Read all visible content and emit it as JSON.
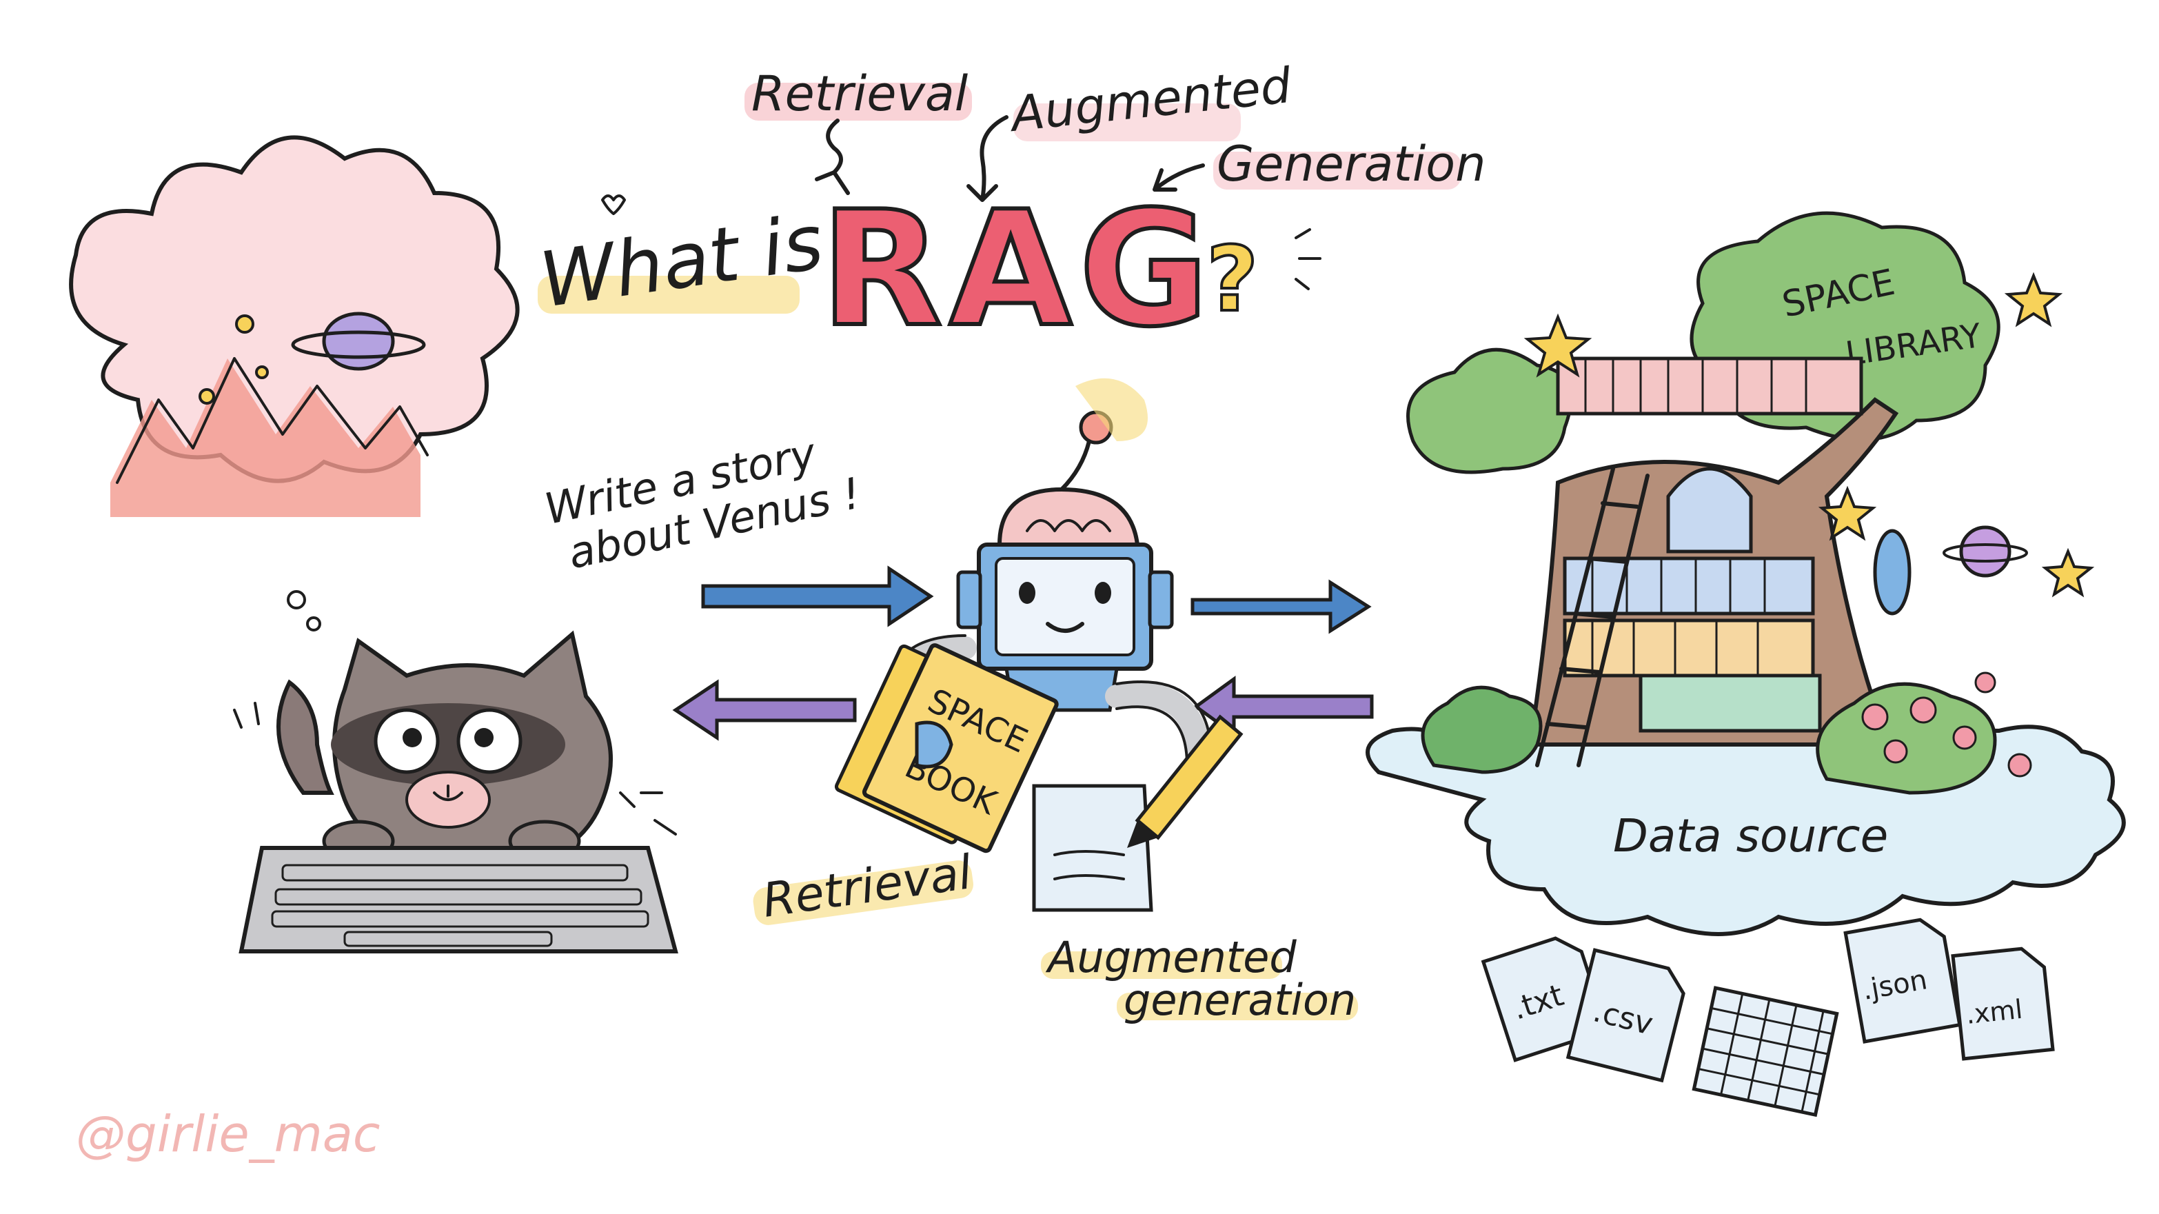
{
  "title": {
    "prefix": "What is",
    "acronym": "RAG",
    "suffix": "?",
    "letters": [
      {
        "word": "Retrieval"
      },
      {
        "word": "Augmented"
      },
      {
        "word": "Generation"
      }
    ]
  },
  "prompt": {
    "line1": "Write a story",
    "line2": "about Venus !"
  },
  "library": {
    "sign_line1": "SPACE",
    "sign_line2": "LIBRARY",
    "caption": "Data source"
  },
  "book": {
    "line1": "SPACE",
    "line2": "BOOK"
  },
  "labels": {
    "retrieval": "Retrieval",
    "augmented_line1": "Augmented",
    "augmented_line2": "generation"
  },
  "files": [
    {
      "ext": ".txt"
    },
    {
      "ext": ".csv"
    },
    {
      "ext": ".json"
    },
    {
      "ext": ".xml"
    }
  ],
  "credit": "@girlie_mac",
  "colors": {
    "rag_red": "#ec5f72",
    "arrow_blue": "#4c86c6",
    "arrow_purple": "#9a80c9",
    "highlight_yellow": "#f7db7a",
    "highlight_pink": "#f5b5bd",
    "credit_pink": "#f2b7b4"
  }
}
